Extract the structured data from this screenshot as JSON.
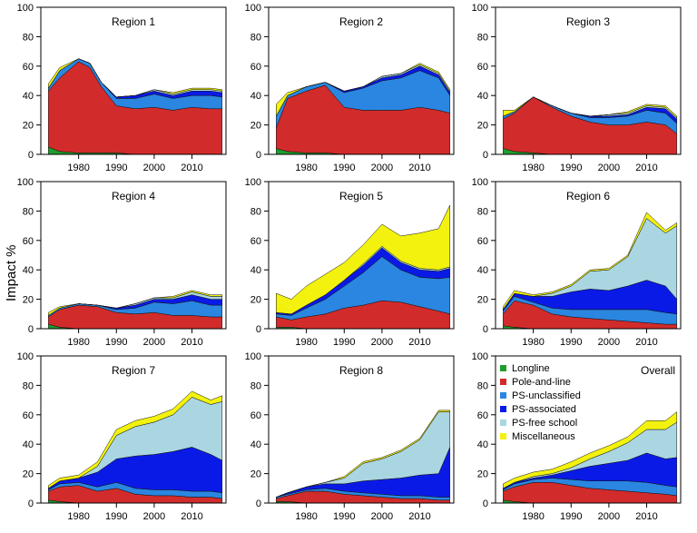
{
  "figure": {
    "ylabel": "Impact %"
  },
  "colors": {
    "Longline": "#1f9e2e",
    "Pole-and-line": "#d22b2b",
    "PS-unclassified": "#2a86e0",
    "PS-associated": "#0a1ae6",
    "PS-free school": "#aad6e2",
    "Miscellaneous": "#f2f20e"
  },
  "chart_data": [
    {
      "type": "area",
      "title": "Region 1",
      "x_ticks": [
        1980,
        1990,
        2000,
        2010
      ],
      "ylim": [
        0,
        100
      ],
      "y_ticks": [
        0,
        20,
        40,
        60,
        80,
        100
      ],
      "xlim": [
        1970,
        2019
      ],
      "x": [
        1972,
        1975,
        1980,
        1983,
        1986,
        1990,
        1995,
        2000,
        2005,
        2010,
        2015,
        2018
      ],
      "series": [
        {
          "name": "Longline",
          "values": [
            5,
            2,
            1,
            1,
            1,
            1,
            0,
            0,
            0,
            0,
            0,
            0
          ]
        },
        {
          "name": "Pole-and-line",
          "values": [
            38,
            50,
            62,
            58,
            45,
            32,
            31,
            32,
            30,
            32,
            31,
            31
          ]
        },
        {
          "name": "PS-unclassified",
          "values": [
            2,
            5,
            2,
            3,
            3,
            5,
            7,
            9,
            8,
            8,
            9,
            8
          ]
        },
        {
          "name": "PS-associated",
          "values": [
            0,
            0,
            0,
            0,
            0,
            1,
            2,
            2,
            2,
            3,
            3,
            3
          ]
        },
        {
          "name": "PS-free school",
          "values": [
            0,
            0,
            0,
            0,
            0,
            0,
            0,
            1,
            1,
            1,
            1,
            1
          ]
        },
        {
          "name": "Miscellaneous",
          "values": [
            3,
            2,
            0,
            0,
            0,
            0,
            0,
            0,
            1,
            1,
            1,
            1
          ]
        }
      ]
    },
    {
      "type": "area",
      "title": "Region 2",
      "x_ticks": [
        1980,
        1990,
        2000,
        2010
      ],
      "ylim": [
        0,
        100
      ],
      "y_ticks": [
        0,
        20,
        40,
        60,
        80,
        100
      ],
      "xlim": [
        1970,
        2019
      ],
      "x": [
        1972,
        1975,
        1980,
        1985,
        1990,
        1995,
        2000,
        2005,
        2010,
        2015,
        2018
      ],
      "series": [
        {
          "name": "Longline",
          "values": [
            4,
            2,
            1,
            1,
            0,
            0,
            0,
            0,
            0,
            0,
            0
          ]
        },
        {
          "name": "Pole-and-line",
          "values": [
            14,
            36,
            42,
            46,
            32,
            30,
            30,
            30,
            32,
            30,
            28
          ]
        },
        {
          "name": "PS-unclassified",
          "values": [
            8,
            2,
            3,
            2,
            10,
            15,
            20,
            22,
            25,
            22,
            12
          ]
        },
        {
          "name": "PS-associated",
          "values": [
            0,
            0,
            0,
            0,
            1,
            1,
            2,
            2,
            3,
            2,
            2
          ]
        },
        {
          "name": "PS-free school",
          "values": [
            0,
            0,
            0,
            0,
            0,
            0,
            1,
            1,
            1,
            1,
            1
          ]
        },
        {
          "name": "Miscellaneous",
          "values": [
            8,
            2,
            0,
            0,
            0,
            0,
            0,
            0,
            1,
            1,
            1
          ]
        }
      ]
    },
    {
      "type": "area",
      "title": "Region 3",
      "x_ticks": [
        1980,
        1990,
        2000,
        2010
      ],
      "ylim": [
        0,
        100
      ],
      "y_ticks": [
        0,
        20,
        40,
        60,
        80,
        100
      ],
      "xlim": [
        1970,
        2019
      ],
      "x": [
        1972,
        1975,
        1980,
        1985,
        1990,
        1995,
        2000,
        2005,
        2010,
        2015,
        2018
      ],
      "series": [
        {
          "name": "Longline",
          "values": [
            4,
            2,
            1,
            0,
            0,
            0,
            0,
            0,
            0,
            0,
            0
          ]
        },
        {
          "name": "Pole-and-line",
          "values": [
            20,
            26,
            38,
            32,
            26,
            22,
            20,
            20,
            22,
            20,
            14
          ]
        },
        {
          "name": "PS-unclassified",
          "values": [
            2,
            1,
            0,
            1,
            2,
            3,
            5,
            6,
            8,
            8,
            7
          ]
        },
        {
          "name": "PS-associated",
          "values": [
            0,
            0,
            0,
            0,
            0,
            1,
            1,
            1,
            2,
            3,
            3
          ]
        },
        {
          "name": "PS-free school",
          "values": [
            0,
            0,
            0,
            0,
            0,
            0,
            1,
            1,
            1,
            1,
            1
          ]
        },
        {
          "name": "Miscellaneous",
          "values": [
            4,
            1,
            0,
            0,
            0,
            0,
            0,
            1,
            1,
            1,
            1
          ]
        }
      ]
    },
    {
      "type": "area",
      "title": "Region 4",
      "x_ticks": [
        1980,
        1990,
        2000,
        2010
      ],
      "ylim": [
        0,
        100
      ],
      "y_ticks": [
        0,
        20,
        40,
        60,
        80,
        100
      ],
      "xlim": [
        1970,
        2019
      ],
      "x": [
        1972,
        1975,
        1980,
        1985,
        1990,
        1995,
        2000,
        2005,
        2010,
        2015,
        2018
      ],
      "series": [
        {
          "name": "Longline",
          "values": [
            3,
            1,
            0,
            0,
            0,
            0,
            0,
            0,
            0,
            0,
            0
          ]
        },
        {
          "name": "Pole-and-line",
          "values": [
            5,
            12,
            16,
            15,
            11,
            10,
            11,
            9,
            9,
            8,
            8
          ]
        },
        {
          "name": "PS-unclassified",
          "values": [
            1,
            1,
            1,
            1,
            2,
            4,
            7,
            8,
            10,
            8,
            8
          ]
        },
        {
          "name": "PS-associated",
          "values": [
            0,
            0,
            0,
            0,
            1,
            2,
            2,
            3,
            4,
            4,
            4
          ]
        },
        {
          "name": "PS-free school",
          "values": [
            0,
            0,
            0,
            0,
            0,
            1,
            1,
            1,
            2,
            2,
            2
          ]
        },
        {
          "name": "Miscellaneous",
          "values": [
            2,
            1,
            0,
            0,
            0,
            0,
            0,
            1,
            1,
            1,
            1
          ]
        }
      ]
    },
    {
      "type": "area",
      "title": "Region 5",
      "x_ticks": [
        1980,
        1990,
        2000,
        2010
      ],
      "ylim": [
        0,
        100
      ],
      "y_ticks": [
        0,
        20,
        40,
        60,
        80,
        100
      ],
      "xlim": [
        1970,
        2019
      ],
      "x": [
        1972,
        1976,
        1980,
        1985,
        1990,
        1995,
        2000,
        2005,
        2010,
        2015,
        2018
      ],
      "series": [
        {
          "name": "Longline",
          "values": [
            1,
            1,
            0,
            0,
            0,
            0,
            0,
            0,
            0,
            0,
            0
          ]
        },
        {
          "name": "Pole-and-line",
          "values": [
            7,
            5,
            8,
            10,
            14,
            16,
            19,
            18,
            15,
            12,
            10
          ]
        },
        {
          "name": "PS-unclassified",
          "values": [
            2,
            3,
            6,
            10,
            15,
            22,
            30,
            22,
            20,
            22,
            25
          ]
        },
        {
          "name": "PS-associated",
          "values": [
            1,
            1,
            2,
            3,
            4,
            5,
            6,
            5,
            5,
            5,
            6
          ]
        },
        {
          "name": "PS-free school",
          "values": [
            0,
            0,
            0,
            0,
            0,
            1,
            1,
            1,
            1,
            1,
            1
          ]
        },
        {
          "name": "Miscellaneous",
          "values": [
            13,
            10,
            13,
            14,
            12,
            13,
            15,
            17,
            24,
            28,
            42
          ]
        }
      ]
    },
    {
      "type": "area",
      "title": "Region 6",
      "x_ticks": [
        1980,
        1990,
        2000,
        2010
      ],
      "ylim": [
        0,
        100
      ],
      "y_ticks": [
        0,
        20,
        40,
        60,
        80,
        100
      ],
      "xlim": [
        1970,
        2019
      ],
      "x": [
        1972,
        1975,
        1980,
        1985,
        1990,
        1995,
        2000,
        2005,
        2010,
        2015,
        2018
      ],
      "series": [
        {
          "name": "Longline",
          "values": [
            2,
            1,
            0,
            0,
            0,
            0,
            0,
            0,
            0,
            0,
            0
          ]
        },
        {
          "name": "Pole-and-line",
          "values": [
            8,
            18,
            16,
            10,
            8,
            7,
            6,
            5,
            4,
            3,
            3
          ]
        },
        {
          "name": "PS-unclassified",
          "values": [
            2,
            3,
            2,
            4,
            5,
            6,
            7,
            8,
            9,
            8,
            7
          ]
        },
        {
          "name": "PS-associated",
          "values": [
            1,
            2,
            4,
            8,
            12,
            14,
            13,
            16,
            20,
            18,
            10
          ]
        },
        {
          "name": "PS-free school",
          "values": [
            0,
            0,
            0,
            2,
            4,
            12,
            14,
            20,
            42,
            36,
            50
          ]
        },
        {
          "name": "Miscellaneous",
          "values": [
            2,
            2,
            1,
            1,
            1,
            1,
            1,
            1,
            4,
            2,
            2
          ]
        }
      ]
    },
    {
      "type": "area",
      "title": "Region 7",
      "x_ticks": [
        1980,
        1990,
        2000,
        2010
      ],
      "ylim": [
        0,
        100
      ],
      "y_ticks": [
        0,
        20,
        40,
        60,
        80,
        100
      ],
      "xlim": [
        1970,
        2019
      ],
      "x": [
        1972,
        1975,
        1980,
        1985,
        1990,
        1995,
        2000,
        2005,
        2010,
        2015,
        2018
      ],
      "series": [
        {
          "name": "Longline",
          "values": [
            2,
            1,
            0,
            0,
            0,
            0,
            0,
            0,
            0,
            0,
            0
          ]
        },
        {
          "name": "Pole-and-line",
          "values": [
            6,
            10,
            12,
            8,
            10,
            6,
            5,
            5,
            4,
            4,
            3
          ]
        },
        {
          "name": "PS-unclassified",
          "values": [
            1,
            2,
            2,
            3,
            4,
            4,
            4,
            4,
            4,
            4,
            4
          ]
        },
        {
          "name": "PS-associated",
          "values": [
            1,
            2,
            3,
            10,
            16,
            22,
            24,
            26,
            30,
            25,
            22
          ]
        },
        {
          "name": "PS-free school",
          "values": [
            0,
            0,
            0,
            4,
            16,
            20,
            22,
            25,
            34,
            34,
            40
          ]
        },
        {
          "name": "Miscellaneous",
          "values": [
            2,
            2,
            2,
            3,
            4,
            4,
            4,
            4,
            4,
            3,
            4
          ]
        }
      ]
    },
    {
      "type": "area",
      "title": "Region 8",
      "x_ticks": [
        1980,
        1990,
        2000,
        2010
      ],
      "ylim": [
        0,
        100
      ],
      "y_ticks": [
        0,
        20,
        40,
        60,
        80,
        100
      ],
      "xlim": [
        1970,
        2019
      ],
      "x": [
        1972,
        1975,
        1980,
        1985,
        1990,
        1995,
        2000,
        2005,
        2010,
        2015,
        2018
      ],
      "series": [
        {
          "name": "Longline",
          "values": [
            1,
            1,
            0,
            0,
            0,
            0,
            0,
            0,
            0,
            0,
            0
          ]
        },
        {
          "name": "Pole-and-line",
          "values": [
            2,
            4,
            8,
            8,
            6,
            5,
            4,
            3,
            3,
            2,
            2
          ]
        },
        {
          "name": "PS-unclassified",
          "values": [
            1,
            1,
            1,
            2,
            2,
            2,
            2,
            2,
            2,
            2,
            2
          ]
        },
        {
          "name": "PS-associated",
          "values": [
            0,
            1,
            2,
            3,
            5,
            8,
            10,
            12,
            14,
            16,
            34
          ]
        },
        {
          "name": "PS-free school",
          "values": [
            0,
            0,
            0,
            1,
            4,
            12,
            14,
            18,
            24,
            42,
            24
          ]
        },
        {
          "name": "Miscellaneous",
          "values": [
            0,
            0,
            0,
            0,
            1,
            1,
            1,
            1,
            1,
            1,
            1
          ]
        }
      ]
    },
    {
      "type": "area",
      "title": "Overall",
      "x_ticks": [
        1980,
        1990,
        2000,
        2010
      ],
      "ylim": [
        0,
        100
      ],
      "y_ticks": [
        0,
        20,
        40,
        60,
        80,
        100
      ],
      "xlim": [
        1970,
        2019
      ],
      "x": [
        1972,
        1975,
        1980,
        1985,
        1990,
        1995,
        2000,
        2005,
        2010,
        2015,
        2018
      ],
      "series": [
        {
          "name": "Longline",
          "values": [
            2,
            1,
            0,
            0,
            0,
            0,
            0,
            0,
            0,
            0,
            0
          ]
        },
        {
          "name": "Pole-and-line",
          "values": [
            6,
            10,
            14,
            14,
            12,
            10,
            9,
            8,
            7,
            6,
            5
          ]
        },
        {
          "name": "PS-unclassified",
          "values": [
            1,
            2,
            2,
            3,
            4,
            5,
            6,
            7,
            7,
            6,
            6
          ]
        },
        {
          "name": "PS-associated",
          "values": [
            1,
            1,
            1,
            2,
            6,
            10,
            12,
            14,
            20,
            18,
            20
          ]
        },
        {
          "name": "PS-free school",
          "values": [
            0,
            0,
            1,
            1,
            2,
            5,
            8,
            12,
            16,
            20,
            24
          ]
        },
        {
          "name": "Miscellaneous",
          "values": [
            3,
            3,
            3,
            3,
            4,
            4,
            4,
            4,
            6,
            6,
            7
          ]
        }
      ]
    }
  ],
  "legend": {
    "entries": [
      "Longline",
      "Pole-and-line",
      "PS-unclassified",
      "PS-associated",
      "PS-free school",
      "Miscellaneous"
    ]
  }
}
